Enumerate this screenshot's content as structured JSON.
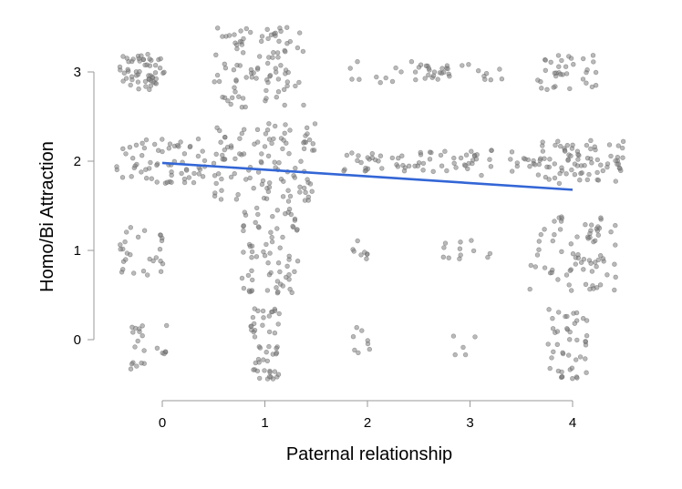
{
  "chart_data": {
    "type": "scatter",
    "title": "",
    "xlabel": "Paternal relationship",
    "ylabel": "Homo/Bi Attraction",
    "xticks": [
      0,
      1,
      2,
      3,
      4
    ],
    "yticks": [
      0,
      1,
      2,
      3
    ],
    "xlim": [
      -0.5,
      4.5
    ],
    "ylim": [
      -0.5,
      3.5
    ],
    "jitter": true,
    "colors": {
      "points": "#7f7f7f",
      "fit_line": "#3366d6",
      "axis": "#999999"
    },
    "fit_line": {
      "x": [
        0,
        4
      ],
      "y": [
        1.98,
        1.68
      ]
    },
    "groups": [
      {
        "x_center": -0.2,
        "x_spread": 0.22,
        "y_center": 3.0,
        "y_spread": 0.2,
        "count": 55
      },
      {
        "x_center": 0.95,
        "x_spread": 0.45,
        "y_center": 3.05,
        "y_spread": 0.45,
        "count": 95
      },
      {
        "x_center": 2.3,
        "x_spread": 0.5,
        "y_center": 3.0,
        "y_spread": 0.12,
        "count": 25
      },
      {
        "x_center": 3.0,
        "x_spread": 0.45,
        "y_center": 3.0,
        "y_spread": 0.1,
        "count": 18
      },
      {
        "x_center": 3.95,
        "x_spread": 0.3,
        "y_center": 3.0,
        "y_spread": 0.2,
        "count": 35
      },
      {
        "x_center": 0.0,
        "x_spread": 0.45,
        "y_center": 2.0,
        "y_spread": 0.25,
        "count": 65
      },
      {
        "x_center": 1.0,
        "x_spread": 0.5,
        "y_center": 2.0,
        "y_spread": 0.45,
        "count": 110
      },
      {
        "x_center": 2.4,
        "x_spread": 0.65,
        "y_center": 2.0,
        "y_spread": 0.12,
        "count": 55
      },
      {
        "x_center": 3.5,
        "x_spread": 0.5,
        "y_center": 1.98,
        "y_spread": 0.15,
        "count": 30
      },
      {
        "x_center": 4.1,
        "x_spread": 0.42,
        "y_center": 2.0,
        "y_spread": 0.25,
        "count": 70
      },
      {
        "x_center": -0.2,
        "x_spread": 0.22,
        "y_center": 1.0,
        "y_spread": 0.28,
        "count": 28
      },
      {
        "x_center": 1.05,
        "x_spread": 0.28,
        "y_center": 1.0,
        "y_spread": 0.48,
        "count": 70
      },
      {
        "x_center": 1.95,
        "x_spread": 0.12,
        "y_center": 1.0,
        "y_spread": 0.12,
        "count": 8
      },
      {
        "x_center": 2.95,
        "x_spread": 0.25,
        "y_center": 1.0,
        "y_spread": 0.12,
        "count": 12
      },
      {
        "x_center": 4.0,
        "x_spread": 0.42,
        "y_center": 1.0,
        "y_spread": 0.45,
        "count": 75
      },
      {
        "x_center": -0.15,
        "x_spread": 0.2,
        "y_center": -0.05,
        "y_spread": 0.28,
        "count": 22
      },
      {
        "x_center": 1.0,
        "x_spread": 0.15,
        "y_center": -0.05,
        "y_spread": 0.4,
        "count": 50
      },
      {
        "x_center": 1.95,
        "x_spread": 0.12,
        "y_center": 0.0,
        "y_spread": 0.15,
        "count": 8
      },
      {
        "x_center": 2.95,
        "x_spread": 0.12,
        "y_center": -0.05,
        "y_spread": 0.12,
        "count": 5
      },
      {
        "x_center": 3.95,
        "x_spread": 0.2,
        "y_center": -0.05,
        "y_spread": 0.4,
        "count": 45
      }
    ]
  }
}
